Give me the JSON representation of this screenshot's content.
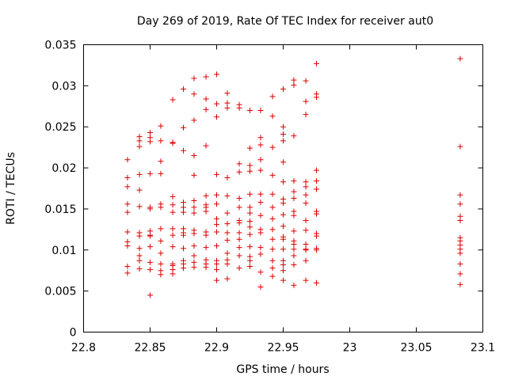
{
  "chart_data": {
    "type": "scatter",
    "title": "Day 269 of 2019, Rate Of TEC Index for receiver aut0",
    "xlabel": "GPS time / hours",
    "ylabel": "ROTI / TECUs",
    "xlim": [
      22.8,
      23.1
    ],
    "ylim": [
      0,
      0.035
    ],
    "xticks": [
      "22.8",
      "22.85",
      "22.9",
      "22.95",
      "23",
      "23.05",
      "23.1"
    ],
    "yticks": [
      "0",
      "0.005",
      "0.01",
      "0.015",
      "0.02",
      "0.025",
      "0.03",
      "0.035"
    ],
    "grid": false,
    "marker": "+",
    "marker_color": "#dd0000",
    "series": [
      {
        "name": "ROTI",
        "points": [
          [
            22.833,
            0.021
          ],
          [
            22.833,
            0.0188
          ],
          [
            22.833,
            0.0177
          ],
          [
            22.833,
            0.0156
          ],
          [
            22.833,
            0.0146
          ],
          [
            22.833,
            0.0122
          ],
          [
            22.833,
            0.011
          ],
          [
            22.833,
            0.0105
          ],
          [
            22.833,
            0.008
          ],
          [
            22.833,
            0.0072
          ],
          [
            22.842,
            0.0238
          ],
          [
            22.842,
            0.0233
          ],
          [
            22.842,
            0.0226
          ],
          [
            22.842,
            0.0192
          ],
          [
            22.842,
            0.0173
          ],
          [
            22.842,
            0.0153
          ],
          [
            22.842,
            0.0121
          ],
          [
            22.842,
            0.0117
          ],
          [
            22.842,
            0.0102
          ],
          [
            22.842,
            0.0093
          ],
          [
            22.842,
            0.0087
          ],
          [
            22.842,
            0.0077
          ],
          [
            22.85,
            0.0243
          ],
          [
            22.85,
            0.0237
          ],
          [
            22.85,
            0.0232
          ],
          [
            22.85,
            0.0193
          ],
          [
            22.85,
            0.0152
          ],
          [
            22.85,
            0.015
          ],
          [
            22.85,
            0.0123
          ],
          [
            22.85,
            0.0118
          ],
          [
            22.85,
            0.0117
          ],
          [
            22.85,
            0.0104
          ],
          [
            22.85,
            0.0085
          ],
          [
            22.85,
            0.0076
          ],
          [
            22.85,
            0.0045
          ],
          [
            22.858,
            0.0251
          ],
          [
            22.858,
            0.0233
          ],
          [
            22.858,
            0.0208
          ],
          [
            22.858,
            0.0193
          ],
          [
            22.858,
            0.0156
          ],
          [
            22.858,
            0.0152
          ],
          [
            22.858,
            0.0126
          ],
          [
            22.858,
            0.0111
          ],
          [
            22.858,
            0.0096
          ],
          [
            22.858,
            0.0083
          ],
          [
            22.858,
            0.0075
          ],
          [
            22.858,
            0.007
          ],
          [
            22.867,
            0.0283
          ],
          [
            22.867,
            0.0231
          ],
          [
            22.867,
            0.023
          ],
          [
            22.867,
            0.0165
          ],
          [
            22.867,
            0.0155
          ],
          [
            22.867,
            0.0146
          ],
          [
            22.867,
            0.0126
          ],
          [
            22.867,
            0.0118
          ],
          [
            22.867,
            0.0104
          ],
          [
            22.867,
            0.0083
          ],
          [
            22.867,
            0.0081
          ],
          [
            22.867,
            0.0076
          ],
          [
            22.867,
            0.0071
          ],
          [
            22.875,
            0.0296
          ],
          [
            22.875,
            0.0249
          ],
          [
            22.875,
            0.0221
          ],
          [
            22.875,
            0.0158
          ],
          [
            22.875,
            0.0152
          ],
          [
            22.875,
            0.0146
          ],
          [
            22.875,
            0.0126
          ],
          [
            22.875,
            0.0121
          ],
          [
            22.875,
            0.0118
          ],
          [
            22.875,
            0.0102
          ],
          [
            22.875,
            0.0087
          ],
          [
            22.875,
            0.0083
          ],
          [
            22.875,
            0.0078
          ],
          [
            22.883,
            0.0309
          ],
          [
            22.883,
            0.029
          ],
          [
            22.883,
            0.0258
          ],
          [
            22.883,
            0.0215
          ],
          [
            22.883,
            0.0191
          ],
          [
            22.883,
            0.016
          ],
          [
            22.883,
            0.0152
          ],
          [
            22.883,
            0.0145
          ],
          [
            22.883,
            0.0124
          ],
          [
            22.883,
            0.012
          ],
          [
            22.883,
            0.0105
          ],
          [
            22.883,
            0.0093
          ],
          [
            22.883,
            0.0085
          ],
          [
            22.883,
            0.0079
          ],
          [
            22.892,
            0.0311
          ],
          [
            22.892,
            0.0284
          ],
          [
            22.892,
            0.0271
          ],
          [
            22.892,
            0.0227
          ],
          [
            22.892,
            0.0166
          ],
          [
            22.892,
            0.0155
          ],
          [
            22.892,
            0.0152
          ],
          [
            22.892,
            0.0147
          ],
          [
            22.892,
            0.0122
          ],
          [
            22.892,
            0.0118
          ],
          [
            22.892,
            0.0103
          ],
          [
            22.892,
            0.0088
          ],
          [
            22.892,
            0.0083
          ],
          [
            22.892,
            0.0079
          ],
          [
            22.9,
            0.0314
          ],
          [
            22.9,
            0.0278
          ],
          [
            22.9,
            0.0262
          ],
          [
            22.9,
            0.0192
          ],
          [
            22.9,
            0.0167
          ],
          [
            22.9,
            0.0156
          ],
          [
            22.9,
            0.0138
          ],
          [
            22.9,
            0.0131
          ],
          [
            22.9,
            0.0122
          ],
          [
            22.9,
            0.0105
          ],
          [
            22.9,
            0.0087
          ],
          [
            22.9,
            0.0083
          ],
          [
            22.9,
            0.0076
          ],
          [
            22.9,
            0.0063
          ],
          [
            22.908,
            0.0291
          ],
          [
            22.908,
            0.0279
          ],
          [
            22.908,
            0.0273
          ],
          [
            22.908,
            0.0188
          ],
          [
            22.908,
            0.0166
          ],
          [
            22.908,
            0.0145
          ],
          [
            22.908,
            0.0132
          ],
          [
            22.908,
            0.0121
          ],
          [
            22.908,
            0.0112
          ],
          [
            22.908,
            0.0096
          ],
          [
            22.908,
            0.0088
          ],
          [
            22.908,
            0.0083
          ],
          [
            22.908,
            0.0065
          ],
          [
            22.917,
            0.0277
          ],
          [
            22.917,
            0.0273
          ],
          [
            22.917,
            0.0205
          ],
          [
            22.917,
            0.0195
          ],
          [
            22.917,
            0.0163
          ],
          [
            22.917,
            0.0152
          ],
          [
            22.917,
            0.0136
          ],
          [
            22.917,
            0.0133
          ],
          [
            22.917,
            0.0121
          ],
          [
            22.917,
            0.0113
          ],
          [
            22.917,
            0.0103
          ],
          [
            22.917,
            0.0093
          ],
          [
            22.917,
            0.0078
          ],
          [
            22.925,
            0.027
          ],
          [
            22.925,
            0.0224
          ],
          [
            22.925,
            0.0203
          ],
          [
            22.925,
            0.0196
          ],
          [
            22.925,
            0.0168
          ],
          [
            22.925,
            0.0152
          ],
          [
            22.925,
            0.0145
          ],
          [
            22.925,
            0.0135
          ],
          [
            22.925,
            0.0128
          ],
          [
            22.925,
            0.0119
          ],
          [
            22.925,
            0.0104
          ],
          [
            22.925,
            0.0092
          ],
          [
            22.925,
            0.0087
          ],
          [
            22.925,
            0.008
          ],
          [
            22.933,
            0.027
          ],
          [
            22.933,
            0.0237
          ],
          [
            22.933,
            0.0228
          ],
          [
            22.933,
            0.021
          ],
          [
            22.933,
            0.0197
          ],
          [
            22.933,
            0.0168
          ],
          [
            22.933,
            0.0158
          ],
          [
            22.933,
            0.0142
          ],
          [
            22.933,
            0.0125
          ],
          [
            22.933,
            0.0121
          ],
          [
            22.933,
            0.0103
          ],
          [
            22.933,
            0.0095
          ],
          [
            22.933,
            0.0073
          ],
          [
            22.933,
            0.0055
          ],
          [
            22.942,
            0.0287
          ],
          [
            22.942,
            0.0263
          ],
          [
            22.942,
            0.0225
          ],
          [
            22.942,
            0.0191
          ],
          [
            22.942,
            0.0168
          ],
          [
            22.942,
            0.0152
          ],
          [
            22.942,
            0.0138
          ],
          [
            22.942,
            0.0125
          ],
          [
            22.942,
            0.0113
          ],
          [
            22.942,
            0.0101
          ],
          [
            22.942,
            0.0087
          ],
          [
            22.942,
            0.0078
          ],
          [
            22.942,
            0.0068
          ],
          [
            22.95,
            0.0296
          ],
          [
            22.95,
            0.025
          ],
          [
            22.95,
            0.0241
          ],
          [
            22.95,
            0.0233
          ],
          [
            22.95,
            0.0207
          ],
          [
            22.95,
            0.0183
          ],
          [
            22.95,
            0.0162
          ],
          [
            22.95,
            0.0157
          ],
          [
            22.95,
            0.0143
          ],
          [
            22.95,
            0.0129
          ],
          [
            22.95,
            0.0116
          ],
          [
            22.95,
            0.0113
          ],
          [
            22.95,
            0.0101
          ],
          [
            22.95,
            0.0087
          ],
          [
            22.95,
            0.0082
          ],
          [
            22.95,
            0.0075
          ],
          [
            22.95,
            0.0063
          ],
          [
            22.958,
            0.0307
          ],
          [
            22.958,
            0.0301
          ],
          [
            22.958,
            0.0239
          ],
          [
            22.958,
            0.0184
          ],
          [
            22.958,
            0.0171
          ],
          [
            22.958,
            0.0163
          ],
          [
            22.958,
            0.0147
          ],
          [
            22.958,
            0.0142
          ],
          [
            22.958,
            0.0123
          ],
          [
            22.958,
            0.0111
          ],
          [
            22.958,
            0.0107
          ],
          [
            22.958,
            0.0101
          ],
          [
            22.958,
            0.0093
          ],
          [
            22.958,
            0.0082
          ],
          [
            22.958,
            0.0057
          ],
          [
            22.967,
            0.0306
          ],
          [
            22.967,
            0.0281
          ],
          [
            22.967,
            0.0265
          ],
          [
            22.967,
            0.0183
          ],
          [
            22.967,
            0.0177
          ],
          [
            22.967,
            0.0167
          ],
          [
            22.967,
            0.0157
          ],
          [
            22.967,
            0.0136
          ],
          [
            22.967,
            0.0124
          ],
          [
            22.967,
            0.0107
          ],
          [
            22.967,
            0.0101
          ],
          [
            22.967,
            0.01
          ],
          [
            22.967,
            0.0087
          ],
          [
            22.967,
            0.0063
          ],
          [
            22.975,
            0.0327
          ],
          [
            22.975,
            0.029
          ],
          [
            22.975,
            0.0286
          ],
          [
            22.975,
            0.0197
          ],
          [
            22.975,
            0.0184
          ],
          [
            22.975,
            0.0174
          ],
          [
            22.975,
            0.0147
          ],
          [
            22.975,
            0.0144
          ],
          [
            22.975,
            0.012
          ],
          [
            22.975,
            0.0117
          ],
          [
            22.975,
            0.0102
          ],
          [
            22.975,
            0.01
          ],
          [
            22.975,
            0.006
          ],
          [
            23.083,
            0.0333
          ],
          [
            23.083,
            0.0226
          ],
          [
            23.083,
            0.0167
          ],
          [
            23.083,
            0.0156
          ],
          [
            23.083,
            0.0141
          ],
          [
            23.083,
            0.0136
          ],
          [
            23.083,
            0.0115
          ],
          [
            23.083,
            0.0111
          ],
          [
            23.083,
            0.0106
          ],
          [
            23.083,
            0.0101
          ],
          [
            23.083,
            0.0096
          ],
          [
            23.083,
            0.0083
          ],
          [
            23.083,
            0.0071
          ],
          [
            23.083,
            0.0058
          ]
        ]
      }
    ]
  }
}
